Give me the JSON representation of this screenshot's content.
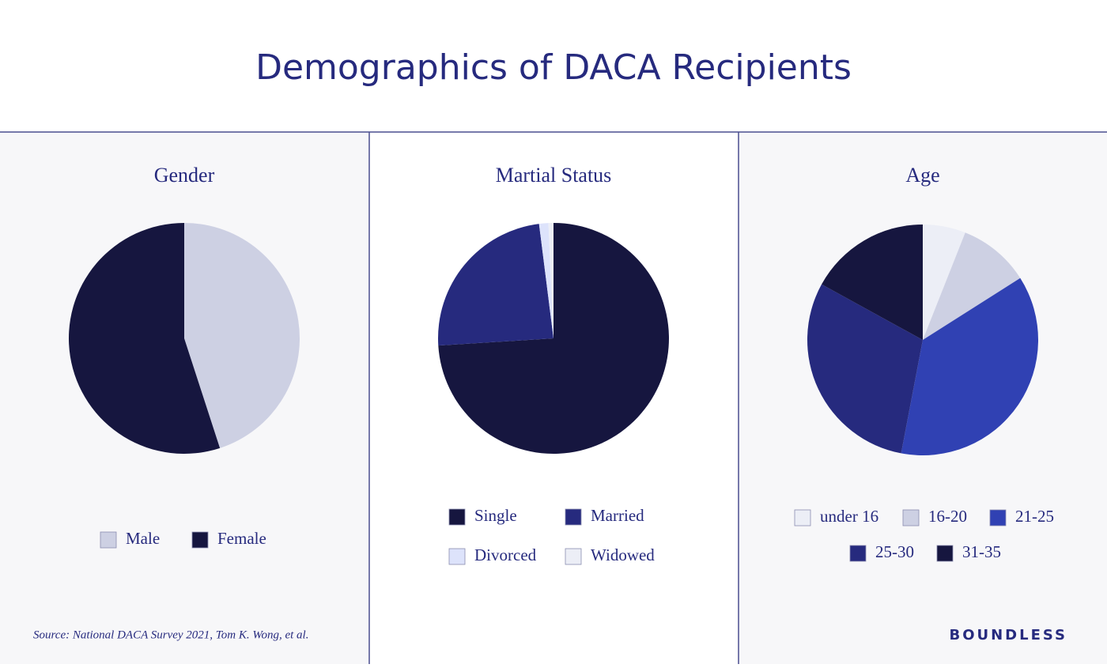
{
  "title": "Demographics of DACA Recipients",
  "source": "Source: National DACA Survey 2021, Tom K. Wong, et al.",
  "brand": "BOUNDLESS",
  "chart_data": [
    {
      "type": "pie",
      "title": "Gender",
      "categories": [
        "Male",
        "Female"
      ],
      "values": [
        45,
        55
      ],
      "colors": [
        "#cdd0e3",
        "#16163f"
      ]
    },
    {
      "type": "pie",
      "title": "Martial Status",
      "categories": [
        "Single",
        "Married",
        "Divorced",
        "Widowed"
      ],
      "values": [
        74,
        24,
        1.3,
        0.7
      ],
      "colors": [
        "#16163f",
        "#262a7e",
        "#dde3fb",
        "#eceef6"
      ]
    },
    {
      "type": "pie",
      "title": "Age",
      "categories": [
        "under 16",
        "16-20",
        "21-25",
        "25-30",
        "31-35"
      ],
      "values": [
        6,
        10,
        37,
        30,
        17
      ],
      "colors": [
        "#eceef6",
        "#cdd0e3",
        "#3041b3",
        "#262a7e",
        "#16163f"
      ]
    }
  ]
}
